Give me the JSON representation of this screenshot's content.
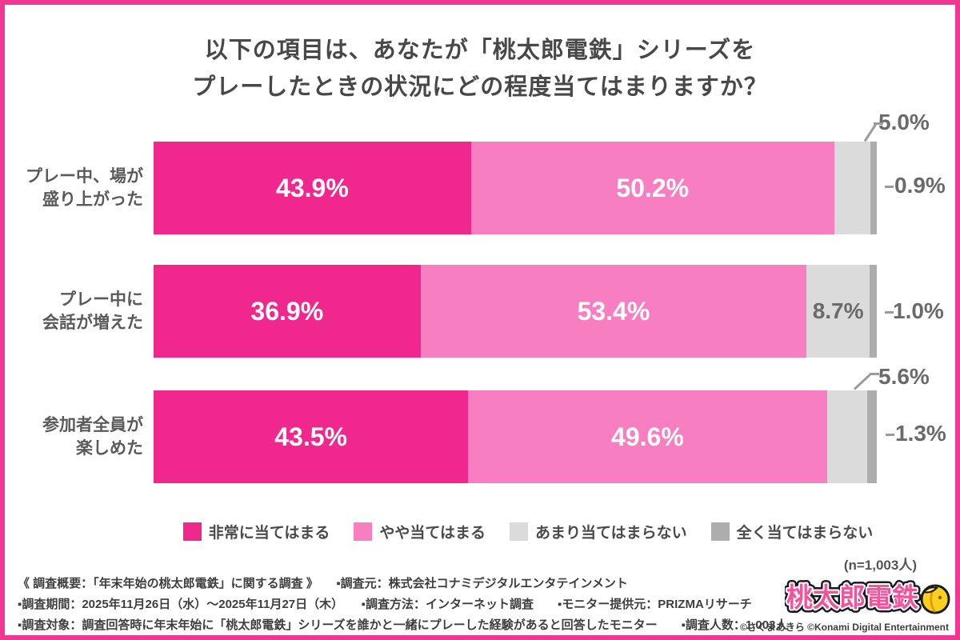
{
  "frame": {
    "border_color": "#F23693"
  },
  "title": {
    "line1": "以下の項目は、あなたが「桃太郎電鉄」シリーズを",
    "line2": "プレーしたときの状況にどの程度当てはまりますか？"
  },
  "chart_data": {
    "type": "bar",
    "orientation": "horizontal",
    "stacked": true,
    "value_unit": "%",
    "xlim": [
      0,
      100
    ],
    "grid": false,
    "legend_position": "bottom",
    "series_labels": [
      "非常に当てはまる",
      "やや当てはまる",
      "あまり当てはまらない",
      "全く当てはまらない"
    ],
    "colors": [
      "#F0288E",
      "#F67EC1",
      "#DBDBDB",
      "#ADADAD"
    ],
    "rows": [
      {
        "label_line1": "プレー中、場が",
        "label_line2": "盛り上がった",
        "values": [
          43.9,
          50.2,
          5.0,
          0.9
        ],
        "labels": [
          "43.9%",
          "50.2%",
          "5.0%",
          "0.9%"
        ]
      },
      {
        "label_line1": "プレー中に",
        "label_line2": "会話が増えた",
        "values": [
          36.9,
          53.4,
          8.7,
          1.0
        ],
        "labels": [
          "36.9%",
          "53.4%",
          "8.7%",
          "1.0%"
        ]
      },
      {
        "label_line1": "参加者全員が",
        "label_line2": "楽しめた",
        "values": [
          43.5,
          49.6,
          5.6,
          1.3
        ],
        "labels": [
          "43.5%",
          "49.6%",
          "5.6%",
          "1.3%"
        ]
      }
    ],
    "sample_note": "(n=1,003人)"
  },
  "footer": {
    "line1": "《 調査概要：「年末年始の桃太郎電鉄」に関する調査 》　　▪調査元：株式会社コナミデジタルエンタテインメント",
    "line2": "▪調査期間：2025年11月26日（水）〜2025年11月27日（木）　　▪調査方法：インターネット調査　　▪モニター提供元：PRIZMAリサーチ",
    "line3": "▪調査対象：調査回答時に年末年始に「桃太郎電鉄」シリーズを誰かと一緒にプレーした経験があると回答したモニター　　▪調査人数：1,003人",
    "copyright": "©さくまあきら ©Konami Digital Entertainment"
  },
  "logo": {
    "text": "桃太郎電鉄"
  }
}
